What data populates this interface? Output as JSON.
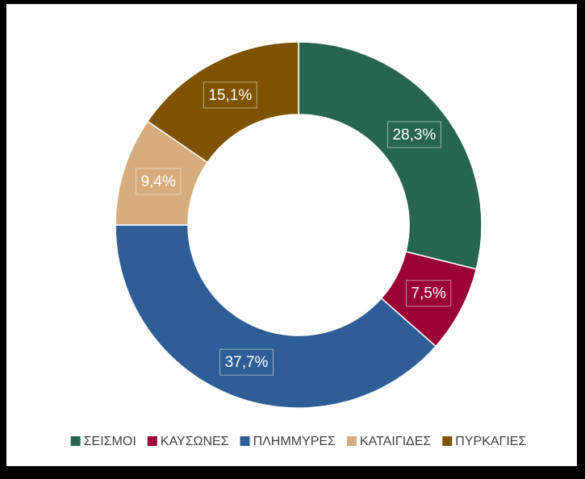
{
  "chart_data": {
    "type": "donut",
    "categories": [
      "ΣΕΙΣΜΟΙ",
      "ΚΑΥΣΩΝΕΣ",
      "ΠΛΗΜΜΥΡΕΣ",
      "ΚΑΤΑΙΓΙΔΕΣ",
      "ΠΥΡΚΑΓΙΕΣ"
    ],
    "values": [
      28.3,
      7.5,
      37.7,
      9.4,
      15.1
    ],
    "value_labels": [
      "28,3%",
      "7,5%",
      "37,7%",
      "9,4%",
      "15,1%"
    ],
    "colors": [
      "#286550",
      "#9a0034",
      "#2e5e95",
      "#d6ad7e",
      "#7e5300"
    ],
    "legend": "bottom"
  }
}
